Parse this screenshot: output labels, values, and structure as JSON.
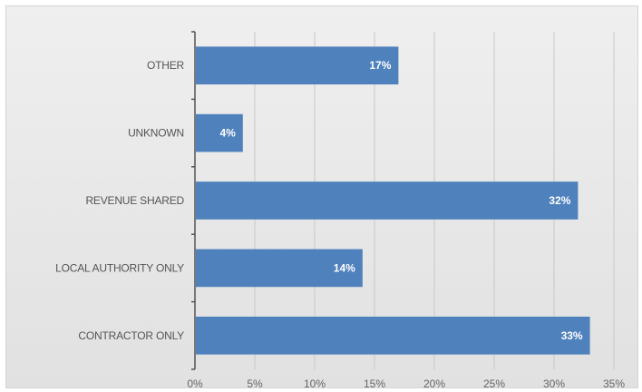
{
  "chart_data": {
    "type": "bar",
    "orientation": "horizontal",
    "categories": [
      "OTHER",
      "UNKNOWN",
      "REVENUE SHARED",
      "LOCAL AUTHORITY ONLY",
      "CONTRACTOR ONLY"
    ],
    "values": [
      17,
      4,
      32,
      14,
      33
    ],
    "value_labels": [
      "17%",
      "4%",
      "32%",
      "14%",
      "33%"
    ],
    "xlim": [
      0,
      35
    ],
    "x_ticks": [
      0,
      5,
      10,
      15,
      20,
      25,
      30,
      35
    ],
    "x_tick_labels": [
      "0%",
      "5%",
      "10%",
      "15%",
      "20%",
      "25%",
      "30%",
      "35%"
    ],
    "grid": "vertical",
    "legend": "none",
    "bar_color": "#4f81bd"
  }
}
